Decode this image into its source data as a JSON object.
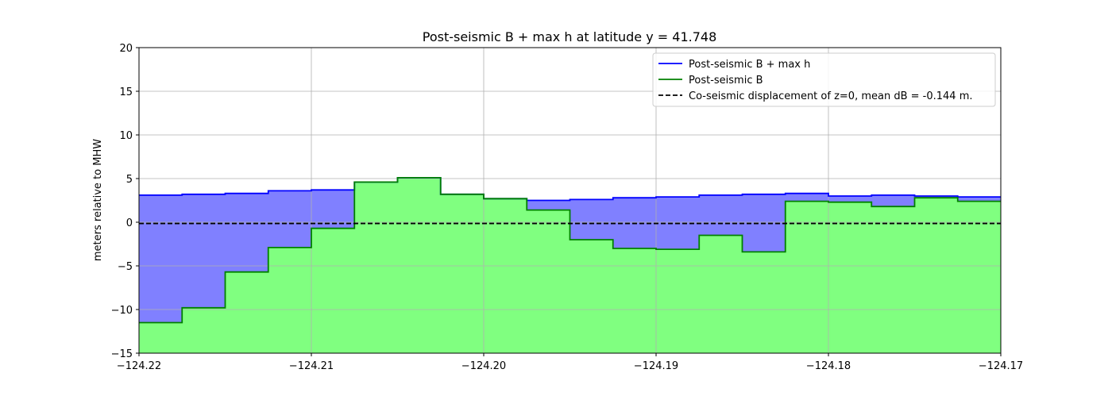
{
  "chart_data": {
    "type": "area",
    "title": "Post-seismic B + max h at latitude y = 41.748",
    "xlabel": "",
    "ylabel": "meters relative to MHW",
    "xlim": [
      -124.22,
      -124.17
    ],
    "ylim": [
      -15,
      20
    ],
    "grid": true,
    "legend_placement": "top-right",
    "x_ticks": [
      -124.22,
      -124.21,
      -124.2,
      -124.19,
      -124.18,
      -124.17
    ],
    "x_tick_labels": [
      "−124.22",
      "−124.21",
      "−124.20",
      "−124.19",
      "−124.18",
      "−124.17"
    ],
    "y_ticks": [
      -15,
      -10,
      -5,
      0,
      5,
      10,
      15,
      20
    ],
    "y_tick_labels": [
      "−15",
      "−10",
      "−5",
      "0",
      "5",
      "10",
      "15",
      "20"
    ],
    "x_edges": [
      -124.22,
      -124.2175,
      -124.215,
      -124.2125,
      -124.21,
      -124.2075,
      -124.205,
      -124.2025,
      -124.2,
      -124.1975,
      -124.195,
      -124.1925,
      -124.19,
      -124.1875,
      -124.185,
      -124.1825,
      -124.18,
      -124.1775,
      -124.175,
      -124.1725,
      -124.17
    ],
    "series": [
      {
        "name": "Post-seismic B + max h",
        "color": "#0000ff",
        "fill": "#8080ff",
        "style": "solid",
        "values": [
          3.1,
          3.2,
          3.3,
          3.6,
          3.7,
          4.6,
          5.1,
          3.2,
          2.7,
          2.5,
          2.6,
          2.8,
          2.9,
          3.1,
          3.2,
          3.3,
          3.0,
          3.1,
          3.0,
          2.9
        ]
      },
      {
        "name": "Post-seismic B",
        "color": "#008000",
        "fill": "#80ff80",
        "style": "solid",
        "values": [
          -11.5,
          -9.8,
          -5.7,
          -2.9,
          -0.7,
          4.6,
          5.1,
          3.2,
          2.7,
          1.4,
          -2.0,
          -3.0,
          -3.1,
          -1.5,
          -3.4,
          2.4,
          2.3,
          1.8,
          2.8,
          2.4
        ]
      },
      {
        "name": "Co-seismic displacement of z=0, mean dB = -0.144 m.",
        "color": "#000000",
        "style": "dashed",
        "value": -0.144
      }
    ]
  }
}
